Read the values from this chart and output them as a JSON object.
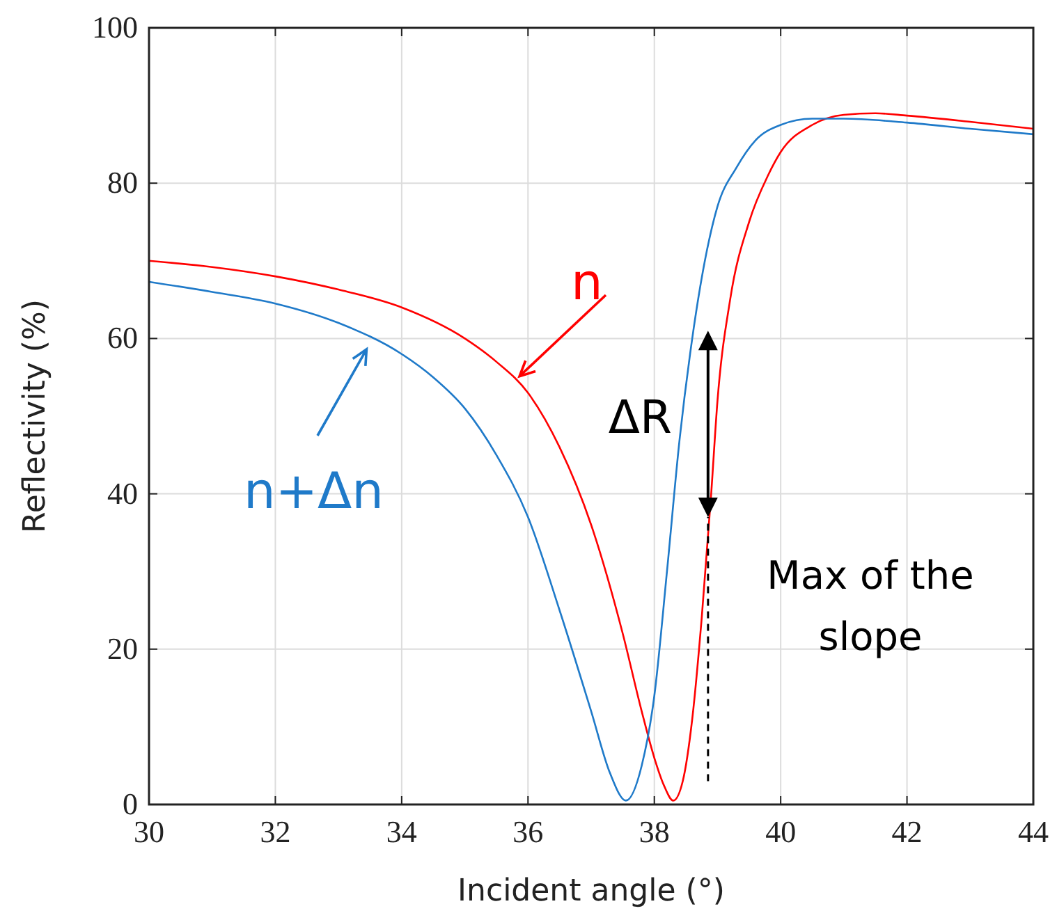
{
  "chart_data": {
    "type": "line",
    "xlabel": "Incident angle (°)",
    "ylabel": "Reflectivity (%)",
    "xlim": [
      30,
      44
    ],
    "xticks": [
      30,
      32,
      34,
      36,
      38,
      40,
      42,
      44
    ],
    "ylim": [
      0,
      100
    ],
    "yticks": [
      0,
      20,
      40,
      60,
      80,
      100
    ],
    "grid": true,
    "series": [
      {
        "name": "n",
        "color": "#ff0000",
        "x": [
          30,
          31,
          32,
          33,
          34,
          35,
          35.5,
          36,
          36.5,
          37,
          37.5,
          37.8,
          38,
          38.15,
          38.3,
          38.45,
          38.6,
          38.75,
          38.9,
          39,
          39.2,
          39.5,
          39.8,
          40,
          40.5,
          41,
          41.5,
          42,
          43,
          44
        ],
        "values": [
          70,
          69.2,
          68,
          66.3,
          64,
          60,
          57,
          53,
          46,
          36,
          22,
          12,
          6,
          2.5,
          0.5,
          3,
          11,
          24,
          40,
          52,
          65,
          75,
          81,
          84,
          87.5,
          88.8,
          89,
          88.7,
          87.9,
          87
        ]
      },
      {
        "name": "n+Δn",
        "color": "#1f7ac9",
        "x": [
          30,
          31,
          32,
          33,
          34,
          34.5,
          35,
          35.5,
          36,
          36.5,
          37,
          37.3,
          37.55,
          37.8,
          38,
          38.2,
          38.4,
          38.6,
          38.8,
          39,
          39.3,
          39.6,
          40,
          40.5,
          41,
          42,
          43,
          44
        ],
        "values": [
          67.3,
          66,
          64.5,
          62,
          58,
          55,
          51,
          45,
          37,
          25,
          12,
          4,
          0.5,
          5,
          14,
          30,
          47,
          60,
          70,
          77,
          82,
          85.5,
          87.5,
          88.3,
          88.3,
          87.8,
          87,
          86.3
        ]
      }
    ],
    "annotations": [
      "ΔR",
      "Max of the slope"
    ]
  }
}
